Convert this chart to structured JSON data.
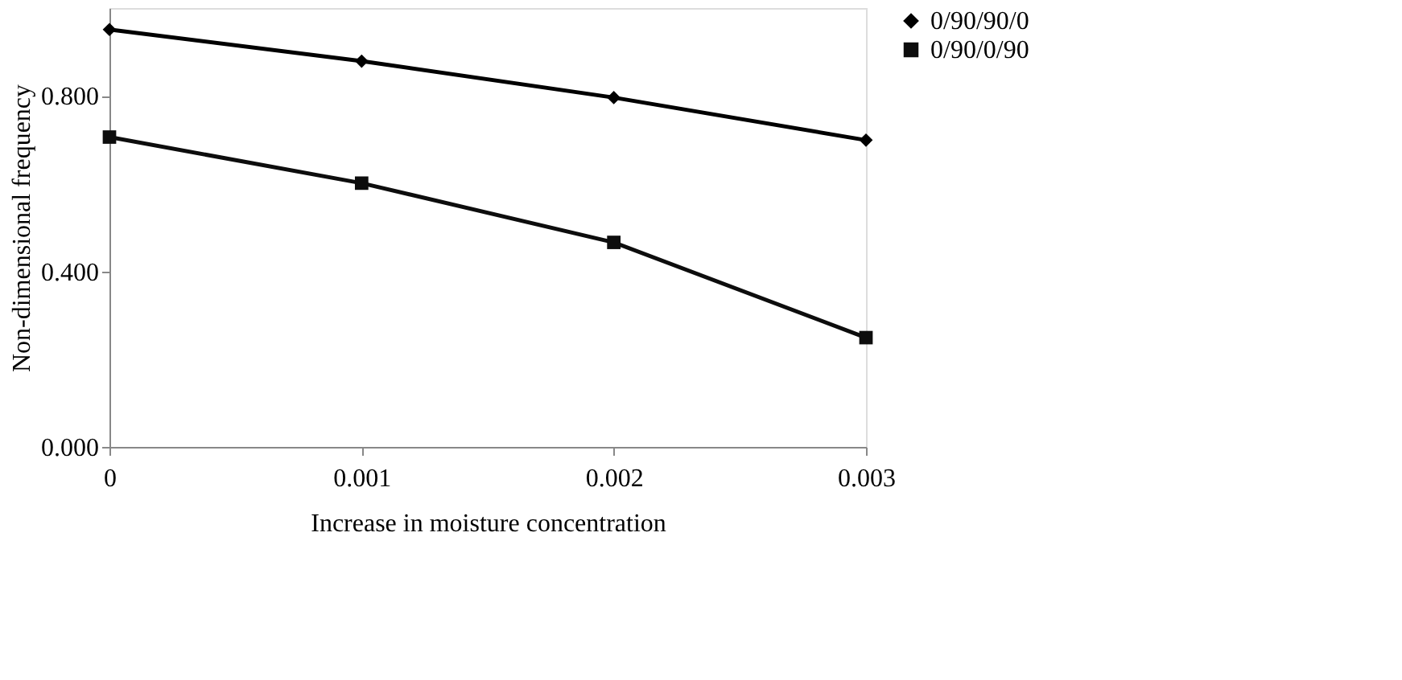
{
  "chart_data": {
    "type": "line",
    "xlabel": "Increase in moisture concentration",
    "ylabel": "Non-dimensional frequency",
    "categories": [
      "0",
      "0.001",
      "0.002",
      "0.003"
    ],
    "series": [
      {
        "name": "0/90/90/0",
        "color": "#000000",
        "marker": "diamond",
        "values": [
          0.951,
          0.879,
          0.796,
          0.699
        ]
      },
      {
        "name": "0/90/0/90",
        "color": "#0d0d0d",
        "marker": "square",
        "values": [
          0.706,
          0.601,
          0.466,
          0.249
        ]
      }
    ],
    "ylim": [
      0,
      1.0
    ],
    "yticks": [
      {
        "value": 0,
        "label": "0.000"
      },
      {
        "value": 0.4,
        "label": "0.400"
      },
      {
        "value": 0.8,
        "label": "0.800"
      }
    ],
    "grid": false,
    "legend": "right",
    "line_style": "solid"
  }
}
